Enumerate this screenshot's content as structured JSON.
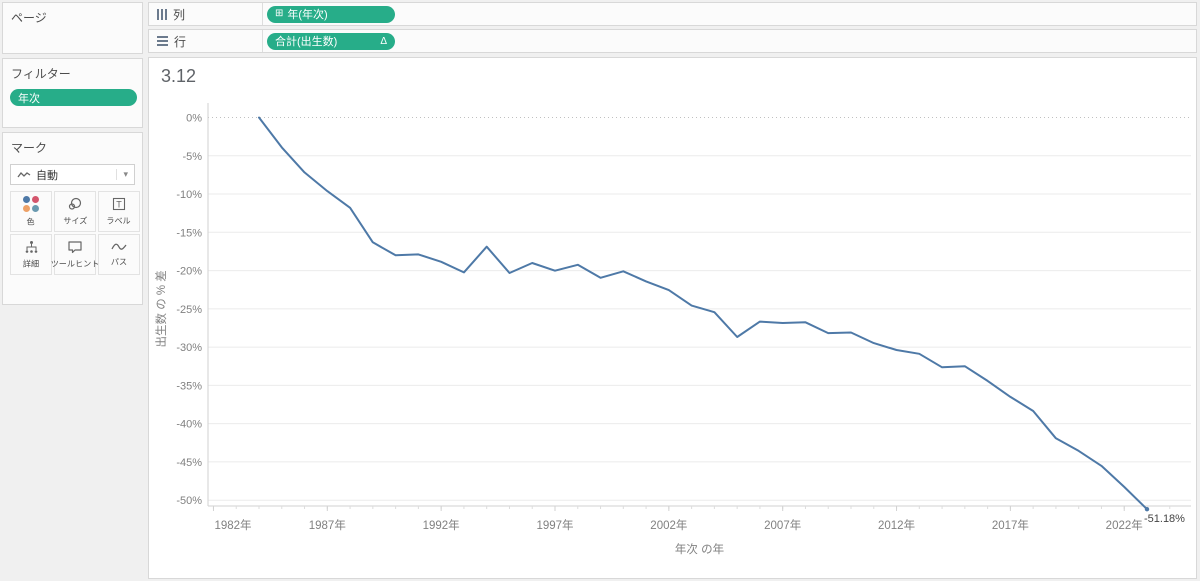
{
  "left_panel": {
    "pages_card": {
      "title": "ページ"
    },
    "filters_card": {
      "title": "フィルター",
      "pills": [
        "年次"
      ]
    },
    "marks_card": {
      "title": "マーク",
      "mark_type_dropdown": {
        "value": "自動",
        "icon": "line-mark-icon",
        "caret": "▾"
      },
      "buttons": [
        {
          "icon": "color-dots-icon",
          "label": "色"
        },
        {
          "icon": "size-circles-icon",
          "label": "サイズ"
        },
        {
          "icon": "label-text-icon",
          "label": "ラベル"
        },
        {
          "icon": "detail-tree-icon",
          "label": "詳細"
        },
        {
          "icon": "tooltip-bubble-icon",
          "label": "ツールヒント"
        },
        {
          "icon": "path-wave-icon",
          "label": "パス"
        }
      ]
    }
  },
  "shelves": {
    "columns": {
      "label": "列",
      "pill": "年(年次)",
      "pill_icon": "⊞"
    },
    "rows": {
      "label": "行",
      "pill": "合計(出生数)",
      "pill_badge": "Δ"
    }
  },
  "chart_title": "3.12",
  "chart_data": {
    "type": "line",
    "title": "3.12",
    "xlabel": "年次 の年",
    "ylabel": "出生数 の % 差",
    "x_tick_labels": [
      "1982年",
      "1987年",
      "1992年",
      "1997年",
      "2002年",
      "2007年",
      "2012年",
      "2017年",
      "2022年"
    ],
    "x_tick_years": [
      1982,
      1987,
      1992,
      1997,
      2002,
      2007,
      2012,
      2017,
      2022
    ],
    "y_tick_labels": [
      "0%",
      "-5%",
      "-10%",
      "-15%",
      "-20%",
      "-25%",
      "-30%",
      "-35%",
      "-40%",
      "-45%",
      "-50%"
    ],
    "y_tick_values": [
      0,
      -5,
      -10,
      -15,
      -20,
      -25,
      -30,
      -35,
      -40,
      -45,
      -50
    ],
    "xlim": [
      1981.4,
      2024.6
    ],
    "ylim": [
      -53,
      2.5
    ],
    "grid": "horizontal",
    "legend": "none",
    "end_label": "-51.18%",
    "x": [
      1984,
      1985,
      1986,
      1987,
      1988,
      1989,
      1990,
      1991,
      1992,
      1993,
      1994,
      1995,
      1996,
      1997,
      1998,
      1999,
      2000,
      2001,
      2002,
      2003,
      2004,
      2005,
      2006,
      2007,
      2008,
      2009,
      2010,
      2011,
      2012,
      2013,
      2014,
      2015,
      2016,
      2017,
      2018,
      2019,
      2020,
      2021,
      2022,
      2023
    ],
    "values": [
      0,
      -3.91,
      -7.17,
      -9.61,
      -11.8,
      -16.31,
      -18.0,
      -17.89,
      -18.85,
      -20.24,
      -16.88,
      -20.32,
      -19.01,
      -20.01,
      -19.24,
      -20.95,
      -20.09,
      -21.42,
      -22.55,
      -24.58,
      -25.44,
      -28.68,
      -26.66,
      -26.85,
      -26.76,
      -28.17,
      -28.09,
      -29.47,
      -30.38,
      -30.87,
      -32.64,
      -32.49,
      -34.42,
      -36.5,
      -38.35,
      -41.92,
      -43.56,
      -45.52,
      -48.26,
      -51.18
    ]
  },
  "colors": {
    "pill_green": "#27ad89",
    "line_blue": "#4e79a7",
    "grid_line": "#ebebeb",
    "zero_line": "#c0c0c0",
    "axis_line": "#d2d2d2",
    "tick_text": "#818181",
    "end_label_text": "#444444",
    "color_dot_1": "#4e79a7",
    "color_dot_2": "#d4566d",
    "color_dot_3": "#eda167",
    "color_dot_4": "#6a9ab0"
  }
}
